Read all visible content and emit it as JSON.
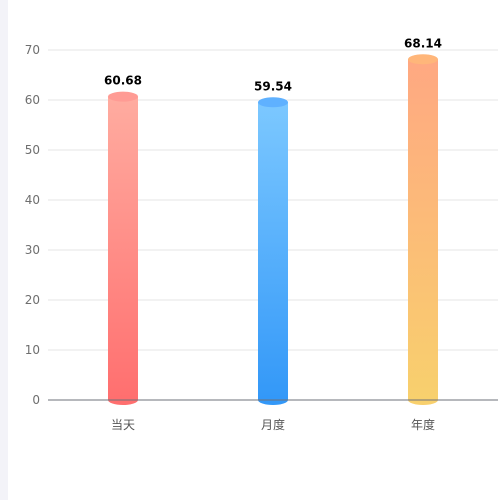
{
  "chart_data": {
    "type": "bar",
    "style": "cylinder",
    "categories": [
      "当天",
      "月度",
      "年度"
    ],
    "values": [
      60.68,
      59.54,
      68.14
    ],
    "value_labels": [
      "60.68",
      "59.54",
      "68.14"
    ],
    "ylim": [
      0,
      70
    ],
    "yticks": [
      "0",
      "10",
      "20",
      "30",
      "40",
      "50",
      "60",
      "70"
    ],
    "ytick_values": [
      0,
      10,
      20,
      30,
      40,
      50,
      60,
      70
    ],
    "grid": true,
    "legend": "none",
    "colors": [
      {
        "top": "#ffaca0",
        "bottom": "#ff6f6f",
        "cap": "#ff9b94"
      },
      {
        "top": "#7cc8ff",
        "bottom": "#3398f8",
        "cap": "#5fb1ff"
      },
      {
        "top": "#ffa882",
        "bottom": "#f8d06d",
        "cap": "#ffb67a"
      }
    ],
    "axis_color": "#6e7079",
    "grid_color": "#e6e6e6"
  }
}
